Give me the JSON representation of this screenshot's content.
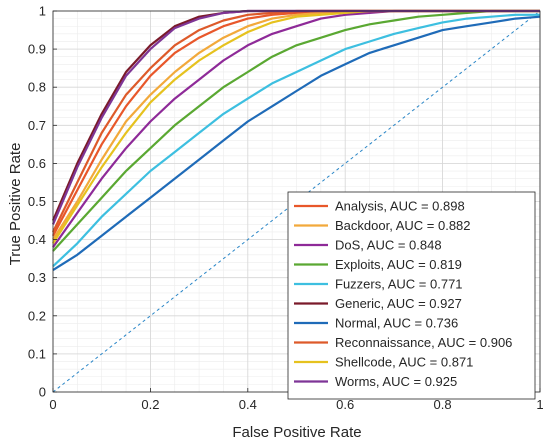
{
  "chart_data": {
    "type": "line",
    "title": "",
    "xlabel": "False Positive Rate",
    "ylabel": "True Positive Rate",
    "xlim": [
      0,
      1
    ],
    "ylim": [
      0,
      1
    ],
    "xticks": [
      "0",
      "0.2",
      "0.4",
      "0.6",
      "0.8",
      "1"
    ],
    "xtick_values": [
      0,
      0.2,
      0.4,
      0.6,
      0.8,
      1
    ],
    "yticks": [
      "0",
      "0.1",
      "0.2",
      "0.3",
      "0.4",
      "0.5",
      "0.6",
      "0.7",
      "0.8",
      "0.9",
      "1"
    ],
    "ytick_values": [
      0,
      0.1,
      0.2,
      0.3,
      0.4,
      0.5,
      0.6,
      0.7,
      0.8,
      0.9,
      1
    ],
    "grid": true,
    "legend_position": "bottom-right",
    "x": [
      0,
      0.05,
      0.1,
      0.15,
      0.2,
      0.25,
      0.3,
      0.35,
      0.4,
      0.45,
      0.5,
      0.55,
      0.6,
      0.65,
      0.7,
      0.75,
      0.8,
      0.85,
      0.9,
      0.95,
      1
    ],
    "series": [
      {
        "name": "Analysis, AUC = 0.898",
        "color": "#e8572a",
        "values": [
          0.41,
          0.53,
          0.65,
          0.75,
          0.83,
          0.89,
          0.93,
          0.96,
          0.98,
          0.99,
          0.995,
          1,
          1,
          1,
          1,
          1,
          1,
          1,
          1,
          1,
          1
        ]
      },
      {
        "name": "Backdoor, AUC = 0.882",
        "color": "#f2a93b",
        "values": [
          0.4,
          0.5,
          0.61,
          0.71,
          0.78,
          0.84,
          0.89,
          0.93,
          0.96,
          0.98,
          0.99,
          0.995,
          1,
          1,
          1,
          1,
          1,
          1,
          1,
          1,
          1
        ]
      },
      {
        "name": "DoS, AUC = 0.848",
        "color": "#8e2a98",
        "values": [
          0.38,
          0.47,
          0.56,
          0.64,
          0.71,
          0.77,
          0.82,
          0.87,
          0.91,
          0.94,
          0.96,
          0.98,
          0.99,
          0.995,
          1,
          1,
          1,
          1,
          1,
          1,
          1
        ]
      },
      {
        "name": "Exploits, AUC = 0.819",
        "color": "#5aa832",
        "values": [
          0.37,
          0.44,
          0.51,
          0.58,
          0.64,
          0.7,
          0.75,
          0.8,
          0.84,
          0.88,
          0.91,
          0.93,
          0.95,
          0.965,
          0.975,
          0.985,
          0.99,
          0.995,
          1,
          1,
          1
        ]
      },
      {
        "name": "Fuzzers, AUC = 0.771",
        "color": "#3dbfe0",
        "values": [
          0.33,
          0.39,
          0.46,
          0.52,
          0.58,
          0.63,
          0.68,
          0.73,
          0.77,
          0.81,
          0.84,
          0.87,
          0.9,
          0.92,
          0.94,
          0.955,
          0.97,
          0.98,
          0.985,
          0.99,
          0.99
        ]
      },
      {
        "name": "Generic, AUC = 0.927",
        "color": "#7a1a2a",
        "values": [
          0.45,
          0.6,
          0.73,
          0.84,
          0.91,
          0.96,
          0.985,
          0.995,
          1,
          1,
          1,
          1,
          1,
          1,
          1,
          1,
          1,
          1,
          1,
          1,
          1
        ]
      },
      {
        "name": "Normal, AUC = 0.736",
        "color": "#1f6bb8",
        "values": [
          0.32,
          0.36,
          0.41,
          0.46,
          0.51,
          0.56,
          0.61,
          0.66,
          0.71,
          0.75,
          0.79,
          0.83,
          0.86,
          0.89,
          0.91,
          0.93,
          0.95,
          0.96,
          0.97,
          0.98,
          0.985
        ]
      },
      {
        "name": "Reconnaissance, AUC = 0.906",
        "color": "#dd5a2a",
        "values": [
          0.42,
          0.55,
          0.68,
          0.78,
          0.85,
          0.91,
          0.95,
          0.975,
          0.99,
          0.995,
          1,
          1,
          1,
          1,
          1,
          1,
          1,
          1,
          1,
          1,
          1
        ]
      },
      {
        "name": "Shellcode, AUC = 0.871",
        "color": "#e6c21e",
        "values": [
          0.39,
          0.49,
          0.59,
          0.68,
          0.76,
          0.82,
          0.87,
          0.91,
          0.945,
          0.97,
          0.985,
          0.99,
          0.995,
          1,
          1,
          1,
          1,
          1,
          1,
          1,
          1
        ]
      },
      {
        "name": "Worms, AUC = 0.925",
        "color": "#7e3596",
        "values": [
          0.44,
          0.59,
          0.72,
          0.83,
          0.9,
          0.955,
          0.98,
          0.995,
          1,
          1,
          1,
          1,
          1,
          1,
          1,
          1,
          1,
          1,
          1,
          1,
          1
        ]
      }
    ],
    "reference_line": {
      "style": "dashed",
      "color": "#2a86c7",
      "x": [
        0,
        1
      ],
      "y": [
        0,
        1
      ]
    }
  }
}
